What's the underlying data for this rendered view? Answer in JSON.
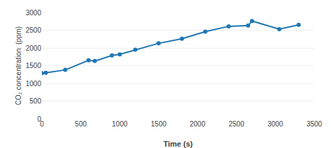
{
  "chart_data": {
    "type": "line",
    "x": [
      0,
      50,
      300,
      600,
      680,
      900,
      1000,
      1200,
      1500,
      1800,
      2100,
      2400,
      2650,
      2700,
      3050,
      3300
    ],
    "values": [
      1290,
      1300,
      1380,
      1650,
      1630,
      1790,
      1820,
      1950,
      2130,
      2260,
      2460,
      2610,
      2630,
      2760,
      2530,
      2650
    ],
    "xlabel": "Time (s)",
    "ylabel": "CO₂ concentration  (ppm)",
    "xlim": [
      0,
      3500
    ],
    "ylim": [
      0,
      3000
    ],
    "xticks": [
      0,
      500,
      1000,
      1500,
      2000,
      2500,
      3000,
      3500
    ],
    "yticks": [
      0,
      500,
      1000,
      1500,
      2000,
      2500,
      3000
    ],
    "grid": true,
    "marker": "circle"
  }
}
